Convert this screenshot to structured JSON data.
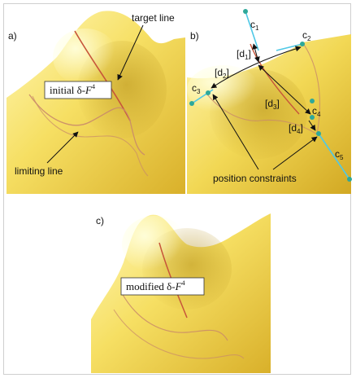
{
  "panels": {
    "a": {
      "label": "a)",
      "box_text": "initial δ-",
      "box_F": "F",
      "box_sup": "4",
      "target_line": "target line",
      "limiting_line": "limiting line"
    },
    "b": {
      "label": "b)",
      "curves": [
        {
          "c": "c",
          "sub": "1"
        },
        {
          "c": "c",
          "sub": "2"
        },
        {
          "c": "c",
          "sub": "3"
        },
        {
          "c": "c",
          "sub": "4"
        },
        {
          "c": "c",
          "sub": "5"
        }
      ],
      "distances": [
        {
          "d": "[d",
          "sub": "1",
          "close": "]"
        },
        {
          "d": "[d",
          "sub": "2",
          "close": "]"
        },
        {
          "d": "[d",
          "sub": "3",
          "close": "]"
        },
        {
          "d": "[d",
          "sub": "4",
          "close": "]"
        }
      ],
      "position_constraints": "position constraints"
    },
    "c": {
      "label": "c)",
      "box_text": "modified δ-",
      "box_F": "F",
      "box_sup": "4"
    }
  },
  "colors": {
    "surface_light": "#fbf3a0",
    "surface_mid": "#efd34e",
    "surface_dark": "#c9a21e",
    "target_line": "#c7553a",
    "limiting_line": "#c98a6a",
    "constraint_curve": "#4fc8e6",
    "constraint_point": "#2ea89a",
    "arrow": "#111111"
  }
}
